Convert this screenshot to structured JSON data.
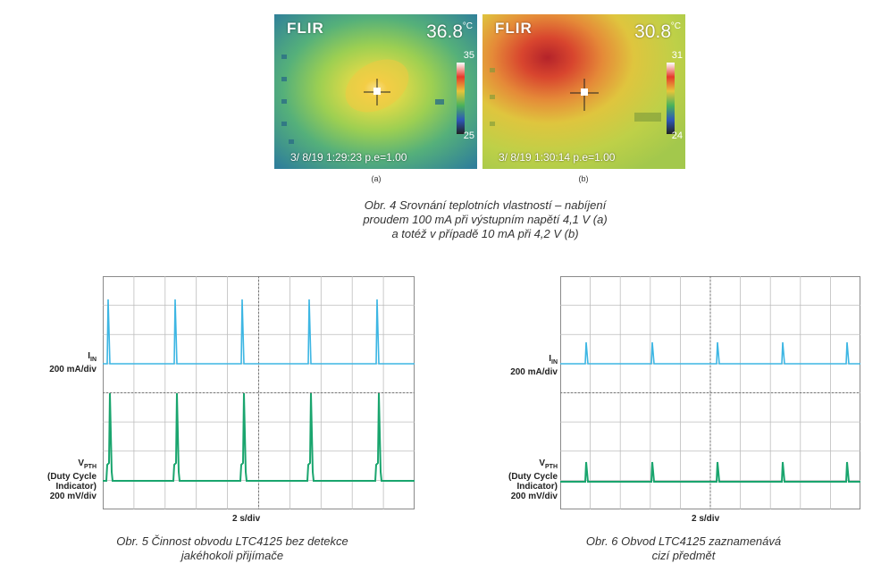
{
  "fig4": {
    "images": [
      {
        "brand": "FLIR",
        "temp": "36.8",
        "unit": "°C",
        "scale_max": "35",
        "scale_min": "25",
        "stamp": "3/ 8/19 1:29:23 p.e=1.00",
        "label": "(a)"
      },
      {
        "brand": "FLIR",
        "temp": "30.8",
        "unit": "°C",
        "scale_max": "31",
        "scale_min": "24",
        "stamp": "3/ 8/19 1:30:14 p.e=1.00",
        "label": "(b)"
      }
    ],
    "caption": [
      "Obr. 4  Srovnání teplotních vlastností – nabíjení",
      "proudem 100 mA při výstupním napětí 4,1 V (a)",
      "a totéž v případě 10 mA při 4,2 V (b)"
    ]
  },
  "fig5": {
    "ch1": {
      "name": "I",
      "sub": "IN",
      "scale": "200 mA/div"
    },
    "ch2": {
      "name": "V",
      "sub": "PTH",
      "line2": "(Duty Cycle",
      "line3": "Indicator)",
      "scale": "200 mV/div"
    },
    "time": "2 s/div",
    "caption": [
      "Obr. 5  Činnost obvodu LTC4125 bez detekce",
      "jakéhokoli přijímače"
    ]
  },
  "fig6": {
    "ch1": {
      "name": "I",
      "sub": "IN",
      "scale": "200 mA/div"
    },
    "ch2": {
      "name": "V",
      "sub": "PTH",
      "line2": "(Duty Cycle",
      "line3": "Indicator)",
      "scale": "200 mV/div"
    },
    "time": "2 s/div",
    "caption": [
      "Obr. 6  Obvod LTC4125 zaznamenává",
      "cizí předmět"
    ]
  },
  "colors": {
    "iin": "#3db6e3",
    "vpth": "#1aa56e",
    "grid": "#8a8a8a"
  }
}
